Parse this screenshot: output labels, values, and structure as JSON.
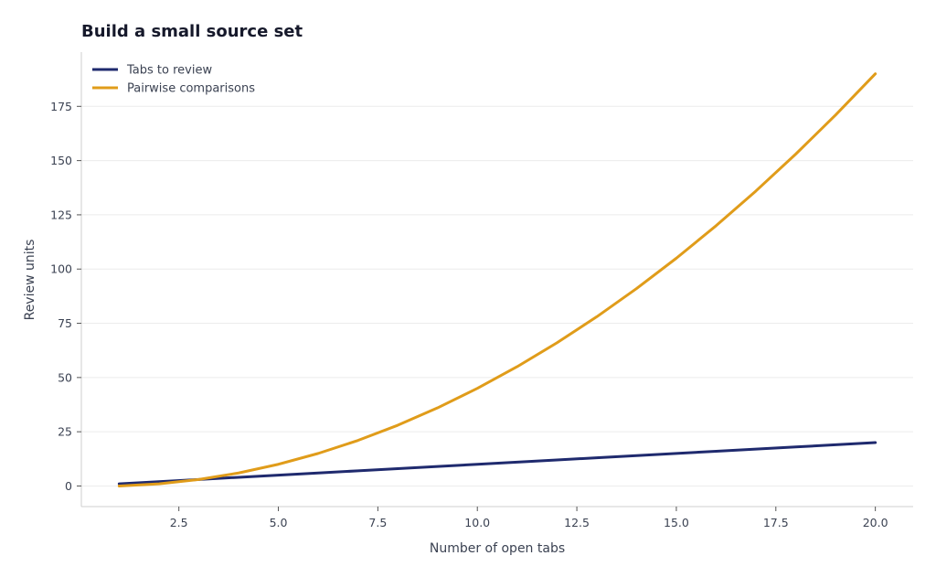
{
  "chart_data": {
    "type": "line",
    "title": "Build a small source set",
    "xlabel": "Number of open tabs",
    "ylabel": "Review units",
    "xlim": [
      0.05,
      20.95
    ],
    "ylim": [
      -9.5,
      200
    ],
    "xticks": [
      2.5,
      5.0,
      7.5,
      10.0,
      12.5,
      15.0,
      17.5,
      20.0
    ],
    "xtick_labels": [
      "2.5",
      "5.0",
      "7.5",
      "10.0",
      "12.5",
      "15.0",
      "17.5",
      "20.0"
    ],
    "yticks": [
      0,
      25,
      50,
      75,
      100,
      125,
      150,
      175
    ],
    "ytick_labels": [
      "0",
      "25",
      "50",
      "75",
      "100",
      "125",
      "150",
      "175"
    ],
    "grid": "horizontal",
    "legend_position": "top-left",
    "x": [
      1,
      2,
      3,
      4,
      5,
      6,
      7,
      8,
      9,
      10,
      11,
      12,
      13,
      14,
      15,
      16,
      17,
      18,
      19,
      20
    ],
    "series": [
      {
        "name": "Tabs to review",
        "color": "#1f2a6e",
        "values": [
          1,
          2,
          3,
          4,
          5,
          6,
          7,
          8,
          9,
          10,
          11,
          12,
          13,
          14,
          15,
          16,
          17,
          18,
          19,
          20
        ]
      },
      {
        "name": "Pairwise comparisons",
        "color": "#e09c1a",
        "values": [
          0,
          1,
          3,
          6,
          10,
          15,
          21,
          28,
          36,
          45,
          55,
          66,
          78,
          91,
          105,
          120,
          136,
          153,
          171,
          190
        ]
      }
    ]
  }
}
